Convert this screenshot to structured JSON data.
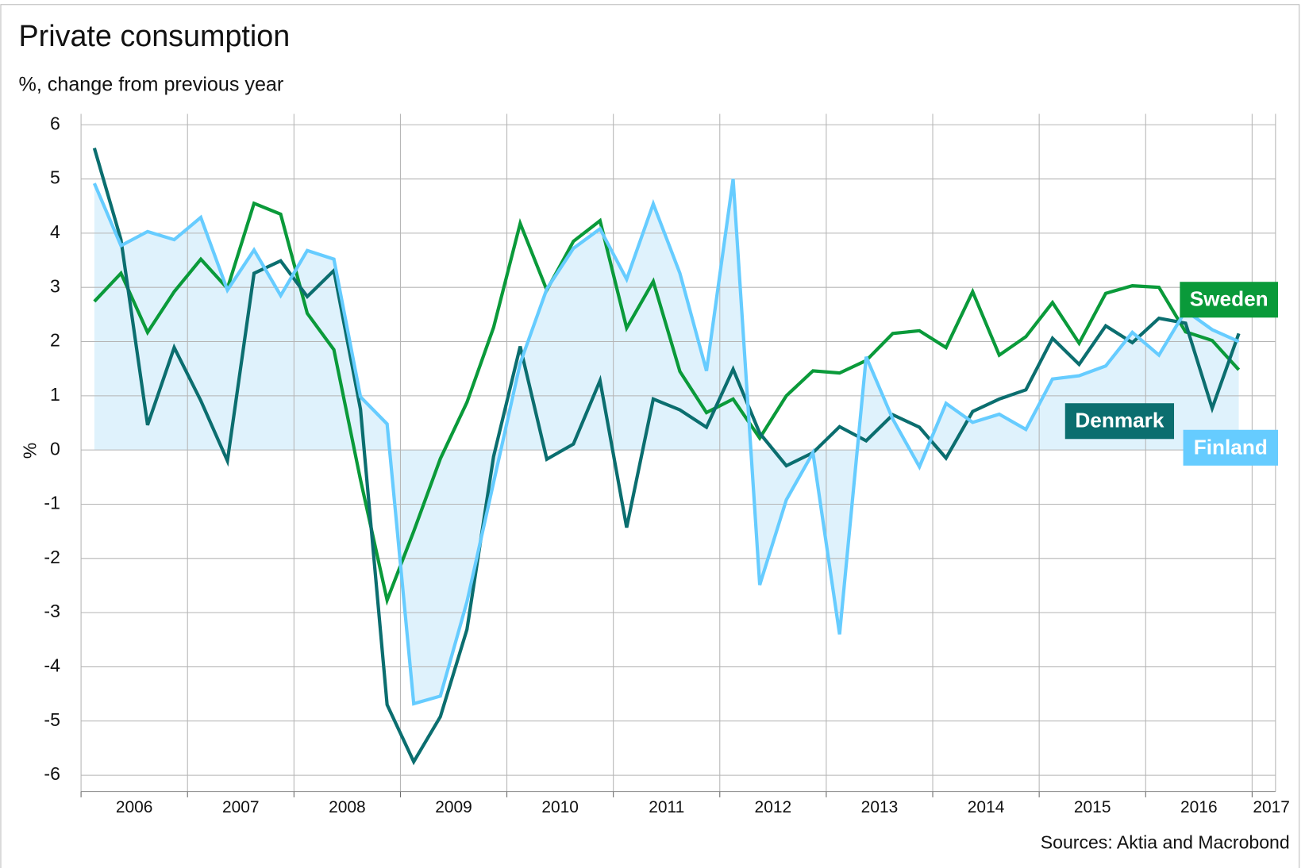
{
  "chart_data": {
    "type": "line",
    "title": "Private consumption",
    "subtitle": "%, change from previous year",
    "y_label": "%",
    "source": "Sources: Aktia and Macrobond",
    "x": [
      2006.125,
      2006.375,
      2006.625,
      2006.875,
      2007.125,
      2007.375,
      2007.625,
      2007.875,
      2008.125,
      2008.375,
      2008.625,
      2008.875,
      2009.125,
      2009.375,
      2009.625,
      2009.875,
      2010.125,
      2010.375,
      2010.625,
      2010.875,
      2011.125,
      2011.375,
      2011.625,
      2011.875,
      2012.125,
      2012.375,
      2012.625,
      2012.875,
      2013.125,
      2013.375,
      2013.625,
      2013.875,
      2014.125,
      2014.375,
      2014.625,
      2014.875,
      2015.125,
      2015.375,
      2015.625,
      2015.875,
      2016.125,
      2016.375,
      2016.625,
      2016.875
    ],
    "xlim": [
      2006,
      2017.22
    ],
    "xticks": [
      2006,
      2007,
      2008,
      2009,
      2010,
      2011,
      2012,
      2013,
      2014,
      2015,
      2016,
      2017
    ],
    "ylim": [
      -6.3,
      6.2
    ],
    "yticks": [
      -6,
      -5,
      -4,
      -3,
      -2,
      -1,
      0,
      1,
      2,
      3,
      4,
      5,
      6
    ],
    "grid": true,
    "series": [
      {
        "name": "Finland",
        "color": "#66ccff",
        "area": true,
        "area_color": "#dff2fc",
        "values": [
          4.92,
          3.77,
          4.03,
          3.88,
          4.29,
          2.95,
          3.69,
          2.85,
          3.68,
          3.52,
          0.98,
          0.48,
          -4.68,
          -4.54,
          -2.8,
          -0.6,
          1.6,
          2.97,
          3.72,
          4.08,
          3.15,
          4.54,
          3.26,
          1.46,
          5.0,
          -2.49,
          -0.92,
          -0.05,
          -3.4,
          1.72,
          0.57,
          -0.31,
          0.86,
          0.51,
          0.66,
          0.38,
          1.31,
          1.37,
          1.55,
          2.17,
          1.75,
          2.57,
          2.22,
          2.0
        ]
      },
      {
        "name": "Sweden",
        "color": "#0a9a3a",
        "values": [
          2.74,
          3.26,
          2.17,
          2.92,
          3.52,
          2.98,
          4.55,
          4.35,
          2.52,
          1.85,
          -0.55,
          -2.77,
          -1.5,
          -0.16,
          0.88,
          2.26,
          4.18,
          2.95,
          3.85,
          4.23,
          2.25,
          3.11,
          1.45,
          0.69,
          0.94,
          0.22,
          1.0,
          1.46,
          1.42,
          1.65,
          2.15,
          2.2,
          1.89,
          2.92,
          1.75,
          2.09,
          2.72,
          1.97,
          2.89,
          3.03,
          3.0,
          2.18,
          2.02,
          1.48
        ]
      },
      {
        "name": "Denmark",
        "color": "#0b6e6f",
        "values": [
          5.57,
          3.88,
          0.46,
          1.89,
          0.91,
          -0.2,
          3.26,
          3.49,
          2.83,
          3.31,
          0.75,
          -4.7,
          -5.75,
          -4.92,
          -3.31,
          -0.12,
          1.91,
          -0.17,
          0.11,
          1.28,
          -1.43,
          0.94,
          0.74,
          0.42,
          1.49,
          0.31,
          -0.29,
          -0.05,
          0.43,
          0.17,
          0.65,
          0.42,
          -0.15,
          0.71,
          0.94,
          1.11,
          2.06,
          1.58,
          2.29,
          1.98,
          2.43,
          2.34,
          0.77,
          2.15
        ]
      }
    ]
  }
}
